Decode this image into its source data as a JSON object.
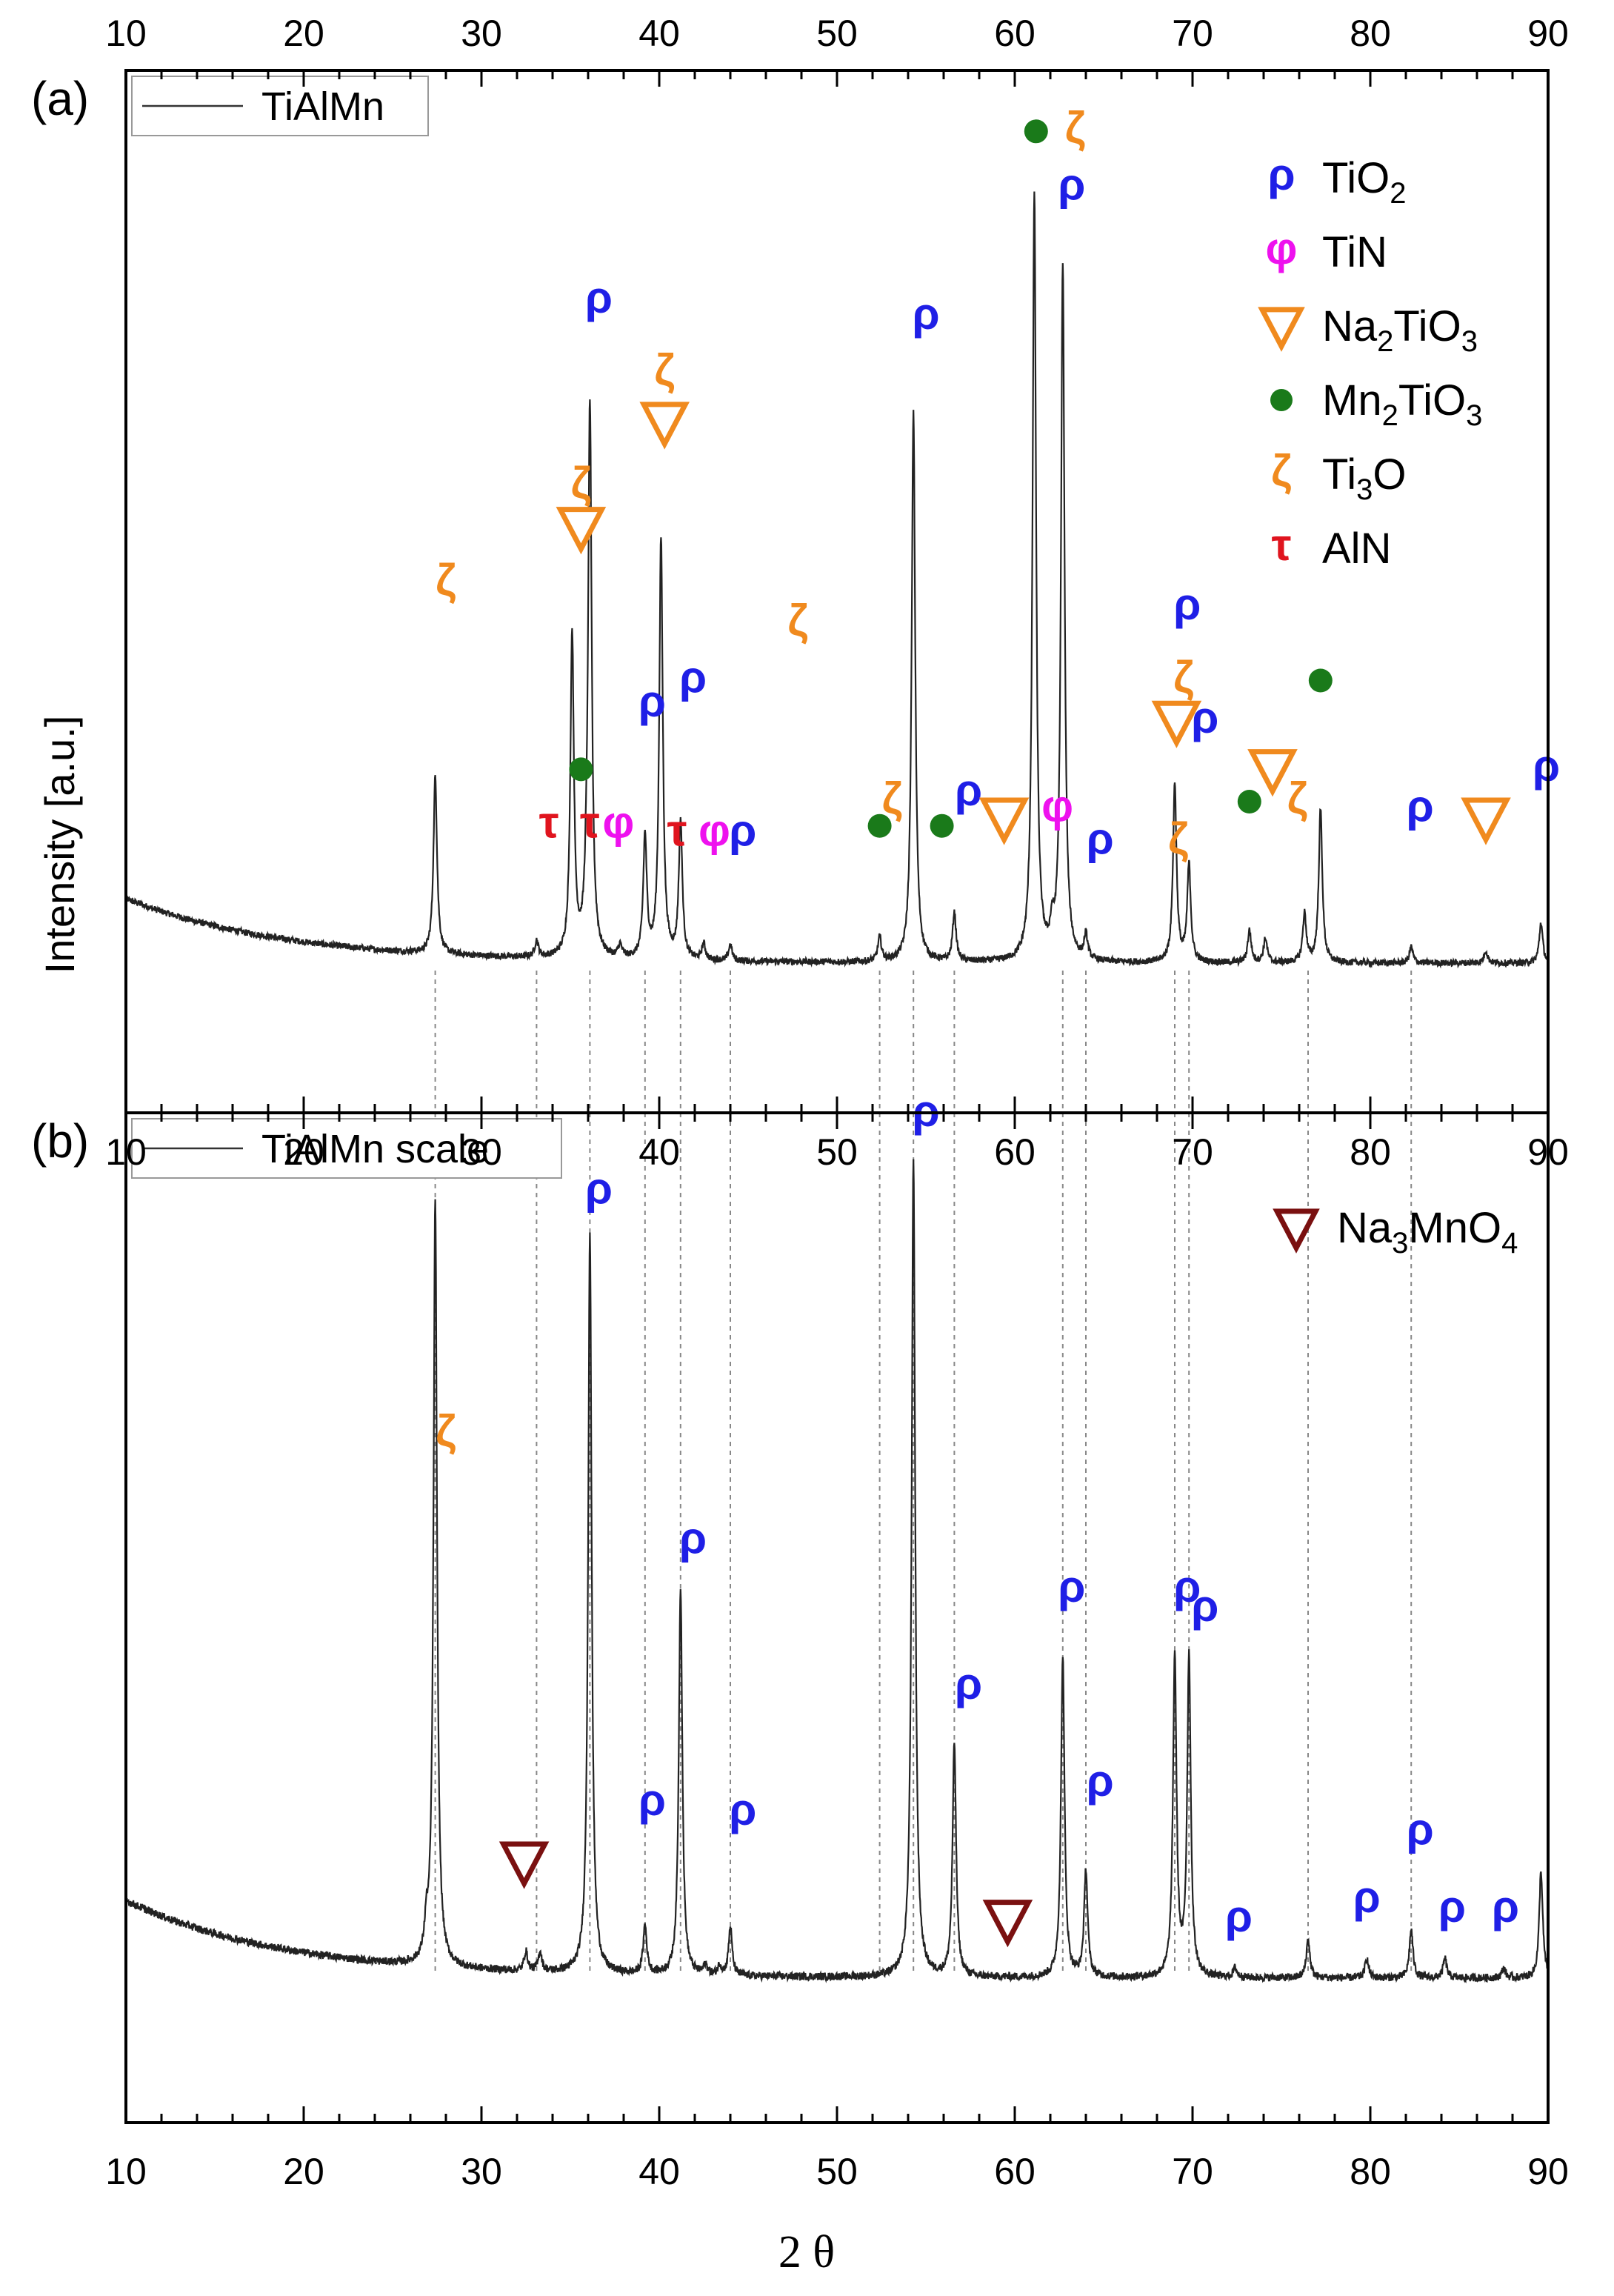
{
  "chart_data": {
    "type": "line",
    "xlabel": "2 θ",
    "ylabel": "Intensity [a.u.]",
    "xlim": [
      10,
      90
    ],
    "x_ticks": [
      "10",
      "20",
      "30",
      "40",
      "50",
      "60",
      "70",
      "80",
      "90"
    ],
    "colors": {
      "rho": "#1f1fe6",
      "phi": "#ee11ee",
      "zeta": "#f08a1e",
      "tau": "#e0141e",
      "mn2tio3": "#1a7a1a",
      "na2tio3": "#f08a1e",
      "na3mno4": "#7a1010",
      "line": "#222222"
    },
    "panels": [
      {
        "id": "a",
        "panel_label": "(a)",
        "legend_line": "TiAlMn",
        "legend": [
          {
            "marker": "ρ",
            "symbol": "rho",
            "text": "TiO",
            "sub": "2",
            "after": ""
          },
          {
            "marker": "φ",
            "symbol": "phi",
            "text": "TiN",
            "sub": "",
            "after": ""
          },
          {
            "marker": "▽",
            "symbol": "na2tio3",
            "text": "Na",
            "sub": "2",
            "after": "TiO",
            "sub2": "3"
          },
          {
            "marker": "●",
            "symbol": "mn2tio3",
            "text": "Mn",
            "sub": "2",
            "after": "TiO",
            "sub2": "3"
          },
          {
            "marker": "ζ",
            "symbol": "zeta",
            "text": "Ti",
            "sub": "3",
            "after": "O",
            "sub2": ""
          },
          {
            "marker": "τ",
            "symbol": "tau",
            "text": "AlN",
            "sub": "",
            "after": ""
          }
        ],
        "peaks": [
          {
            "x": 27.4,
            "h": 0.22
          },
          {
            "x": 33.1,
            "h": 0.02
          },
          {
            "x": 35.1,
            "h": 0.4
          },
          {
            "x": 35.9,
            "h": 0.03
          },
          {
            "x": 36.1,
            "h": 0.68
          },
          {
            "x": 37.8,
            "h": 0.015
          },
          {
            "x": 39.2,
            "h": 0.15
          },
          {
            "x": 40.1,
            "h": 0.52
          },
          {
            "x": 41.2,
            "h": 0.17
          },
          {
            "x": 42.5,
            "h": 0.02
          },
          {
            "x": 44.0,
            "h": 0.02
          },
          {
            "x": 52.4,
            "h": 0.03
          },
          {
            "x": 54.3,
            "h": 0.68
          },
          {
            "x": 56.6,
            "h": 0.06
          },
          {
            "x": 61.1,
            "h": 0.95
          },
          {
            "x": 62.1,
            "h": 0.03
          },
          {
            "x": 62.7,
            "h": 0.86
          },
          {
            "x": 64.0,
            "h": 0.03
          },
          {
            "x": 69.0,
            "h": 0.22
          },
          {
            "x": 69.8,
            "h": 0.12
          },
          {
            "x": 73.2,
            "h": 0.04
          },
          {
            "x": 74.1,
            "h": 0.03
          },
          {
            "x": 76.3,
            "h": 0.06
          },
          {
            "x": 77.2,
            "h": 0.19
          },
          {
            "x": 82.3,
            "h": 0.02
          },
          {
            "x": 86.5,
            "h": 0.015
          },
          {
            "x": 89.6,
            "h": 0.05
          }
        ],
        "markers": [
          {
            "t": "ζ",
            "c": "zeta",
            "x": 28.0,
            "y": 0.47
          },
          {
            "t": "ρ",
            "c": "rho",
            "x": 36.6,
            "y": 0.82
          },
          {
            "t": "ζ",
            "c": "zeta",
            "x": 35.6,
            "y": 0.59
          },
          {
            "t": "▽",
            "c": "na2tio3",
            "x": 35.6,
            "y": 0.54
          },
          {
            "t": "ζ",
            "c": "zeta",
            "x": 40.3,
            "y": 0.73
          },
          {
            "t": "▽",
            "c": "na2tio3",
            "x": 40.3,
            "y": 0.67
          },
          {
            "t": "ζ",
            "c": "zeta",
            "x": 47.8,
            "y": 0.42
          },
          {
            "t": "ρ",
            "c": "rho",
            "x": 39.6,
            "y": 0.32
          },
          {
            "t": "ρ",
            "c": "rho",
            "x": 41.9,
            "y": 0.35
          },
          {
            "t": "●",
            "c": "mn2tio3",
            "x": 35.6,
            "y": 0.24
          },
          {
            "t": "τ",
            "c": "tau",
            "x": 33.8,
            "y": 0.17
          },
          {
            "t": "τ",
            "c": "tau",
            "x": 36.1,
            "y": 0.17
          },
          {
            "t": "φ",
            "c": "phi",
            "x": 37.7,
            "y": 0.17
          },
          {
            "t": "τ",
            "c": "tau",
            "x": 41.0,
            "y": 0.16
          },
          {
            "t": "φ",
            "c": "phi",
            "x": 43.1,
            "y": 0.16
          },
          {
            "t": "ρ",
            "c": "rho",
            "x": 44.7,
            "y": 0.16
          },
          {
            "t": "ζ",
            "c": "zeta",
            "x": 53.1,
            "y": 0.2
          },
          {
            "t": "●",
            "c": "mn2tio3",
            "x": 52.4,
            "y": 0.17
          },
          {
            "t": "ρ",
            "c": "rho",
            "x": 55.0,
            "y": 0.8
          },
          {
            "t": "●",
            "c": "mn2tio3",
            "x": 55.9,
            "y": 0.17
          },
          {
            "t": "ρ",
            "c": "rho",
            "x": 57.4,
            "y": 0.21
          },
          {
            "t": "▽",
            "c": "na2tio3",
            "x": 59.4,
            "y": 0.18
          },
          {
            "t": "●",
            "c": "mn2tio3",
            "x": 61.2,
            "y": 1.03
          },
          {
            "t": "ζ",
            "c": "zeta",
            "x": 63.4,
            "y": 1.03
          },
          {
            "t": "ρ",
            "c": "rho",
            "x": 63.2,
            "y": 0.96
          },
          {
            "t": "φ",
            "c": "phi",
            "x": 62.4,
            "y": 0.19
          },
          {
            "t": "ρ",
            "c": "rho",
            "x": 64.8,
            "y": 0.15
          },
          {
            "t": "ρ",
            "c": "rho",
            "x": 69.7,
            "y": 0.44
          },
          {
            "t": "ζ",
            "c": "zeta",
            "x": 69.5,
            "y": 0.35
          },
          {
            "t": "▽",
            "c": "na2tio3",
            "x": 69.1,
            "y": 0.3
          },
          {
            "t": "ρ",
            "c": "rho",
            "x": 70.7,
            "y": 0.3
          },
          {
            "t": "ζ",
            "c": "zeta",
            "x": 69.2,
            "y": 0.15
          },
          {
            "t": "●",
            "c": "mn2tio3",
            "x": 73.2,
            "y": 0.2
          },
          {
            "t": "▽",
            "c": "na2tio3",
            "x": 74.5,
            "y": 0.24
          },
          {
            "t": "ζ",
            "c": "zeta",
            "x": 75.9,
            "y": 0.2
          },
          {
            "t": "●",
            "c": "mn2tio3",
            "x": 77.2,
            "y": 0.35
          },
          {
            "t": "ρ",
            "c": "rho",
            "x": 82.8,
            "y": 0.19
          },
          {
            "t": "▽",
            "c": "na2tio3",
            "x": 86.5,
            "y": 0.18
          },
          {
            "t": "ρ",
            "c": "rho",
            "x": 89.9,
            "y": 0.24
          }
        ]
      },
      {
        "id": "b",
        "panel_label": "(b)",
        "legend_line": "TiAlMn scale",
        "legend": [
          {
            "marker": "▽",
            "symbol": "na3mno4",
            "text": "Na",
            "sub": "3",
            "after": "MnO",
            "sub2": "4"
          }
        ],
        "peaks": [
          {
            "x": 26.9,
            "h": 0.03
          },
          {
            "x": 27.4,
            "h": 0.79
          },
          {
            "x": 32.5,
            "h": 0.02
          },
          {
            "x": 33.3,
            "h": 0.02
          },
          {
            "x": 36.1,
            "h": 0.76
          },
          {
            "x": 39.2,
            "h": 0.05
          },
          {
            "x": 41.2,
            "h": 0.4
          },
          {
            "x": 42.6,
            "h": 0.01
          },
          {
            "x": 43.4,
            "h": 0.01
          },
          {
            "x": 44.0,
            "h": 0.05
          },
          {
            "x": 54.3,
            "h": 0.84
          },
          {
            "x": 56.6,
            "h": 0.24
          },
          {
            "x": 62.7,
            "h": 0.33
          },
          {
            "x": 64.0,
            "h": 0.11
          },
          {
            "x": 69.0,
            "h": 0.33
          },
          {
            "x": 69.8,
            "h": 0.33
          },
          {
            "x": 72.4,
            "h": 0.01
          },
          {
            "x": 76.5,
            "h": 0.04
          },
          {
            "x": 79.8,
            "h": 0.02
          },
          {
            "x": 82.3,
            "h": 0.05
          },
          {
            "x": 84.2,
            "h": 0.02
          },
          {
            "x": 87.5,
            "h": 0.01
          },
          {
            "x": 89.6,
            "h": 0.11
          }
        ],
        "markers": [
          {
            "t": "ζ",
            "c": "zeta",
            "x": 28.0,
            "y": 0.56
          },
          {
            "t": "ρ",
            "c": "rho",
            "x": 36.6,
            "y": 0.81
          },
          {
            "t": "ρ",
            "c": "rho",
            "x": 39.6,
            "y": 0.18
          },
          {
            "t": "ρ",
            "c": "rho",
            "x": 41.9,
            "y": 0.45
          },
          {
            "t": "ρ",
            "c": "rho",
            "x": 44.7,
            "y": 0.17
          },
          {
            "t": "▽",
            "c": "na3mno4",
            "x": 32.4,
            "y": 0.12
          },
          {
            "t": "ρ",
            "c": "rho",
            "x": 55.0,
            "y": 0.89
          },
          {
            "t": "ρ",
            "c": "rho",
            "x": 57.4,
            "y": 0.3
          },
          {
            "t": "▽",
            "c": "na3mno4",
            "x": 59.6,
            "y": 0.06
          },
          {
            "t": "ρ",
            "c": "rho",
            "x": 63.2,
            "y": 0.4
          },
          {
            "t": "ρ",
            "c": "rho",
            "x": 64.8,
            "y": 0.2
          },
          {
            "t": "ρ",
            "c": "rho",
            "x": 69.7,
            "y": 0.4
          },
          {
            "t": "ρ",
            "c": "rho",
            "x": 70.7,
            "y": 0.38
          },
          {
            "t": "ρ",
            "c": "rho",
            "x": 72.6,
            "y": 0.06
          },
          {
            "t": "ρ",
            "c": "rho",
            "x": 79.8,
            "y": 0.08
          },
          {
            "t": "ρ",
            "c": "rho",
            "x": 82.8,
            "y": 0.15
          },
          {
            "t": "ρ",
            "c": "rho",
            "x": 84.6,
            "y": 0.07
          },
          {
            "t": "ρ",
            "c": "rho",
            "x": 87.6,
            "y": 0.07
          }
        ]
      }
    ],
    "reference_lines": [
      27.4,
      33.1,
      36.1,
      39.2,
      41.2,
      44.0,
      52.4,
      54.3,
      56.6,
      62.7,
      64.0,
      69.0,
      69.8,
      76.5,
      82.3
    ]
  }
}
